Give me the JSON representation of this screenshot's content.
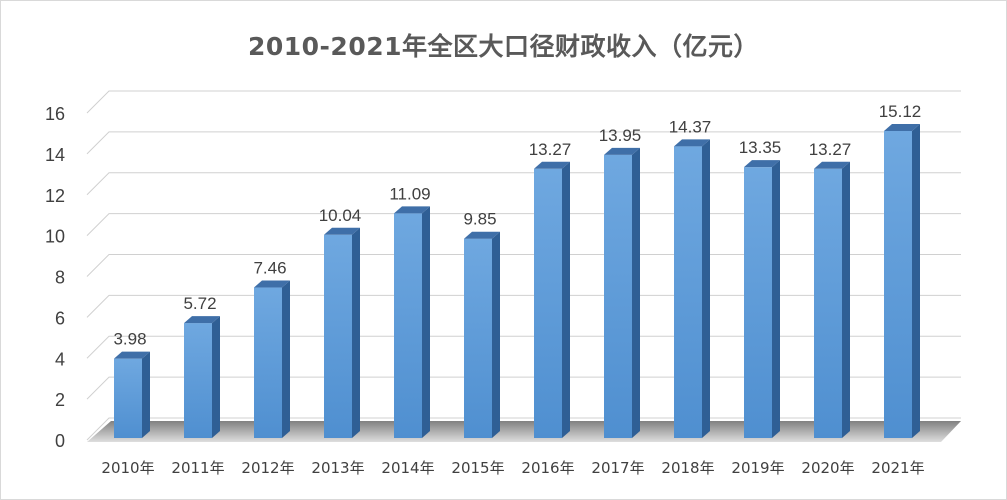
{
  "chart_data": {
    "type": "bar",
    "title": "2010-2021年全区大口径财政收入（亿元）",
    "categories": [
      "2010年",
      "2011年",
      "2012年",
      "2013年",
      "2014年",
      "2015年",
      "2016年",
      "2017年",
      "2018年",
      "2019年",
      "2020年",
      "2021年"
    ],
    "values": [
      3.98,
      5.72,
      7.46,
      10.04,
      11.09,
      9.85,
      13.27,
      13.95,
      14.37,
      13.35,
      13.27,
      15.12
    ],
    "value_labels": [
      "3.98",
      "5.72",
      "7.46",
      "10.04",
      "11.09",
      "9.85",
      "13.27",
      "13.95",
      "14.37",
      "13.35",
      "13.27",
      "15.12"
    ],
    "ylim": [
      0,
      16
    ],
    "yticks": [
      0,
      2,
      4,
      6,
      8,
      10,
      12,
      14,
      16
    ],
    "ytick_labels": [
      "0",
      "2",
      "4",
      "6",
      "8",
      "10",
      "12",
      "14",
      "16"
    ],
    "grid": true,
    "legend": "none",
    "bar_color": "#5b9bd5"
  }
}
